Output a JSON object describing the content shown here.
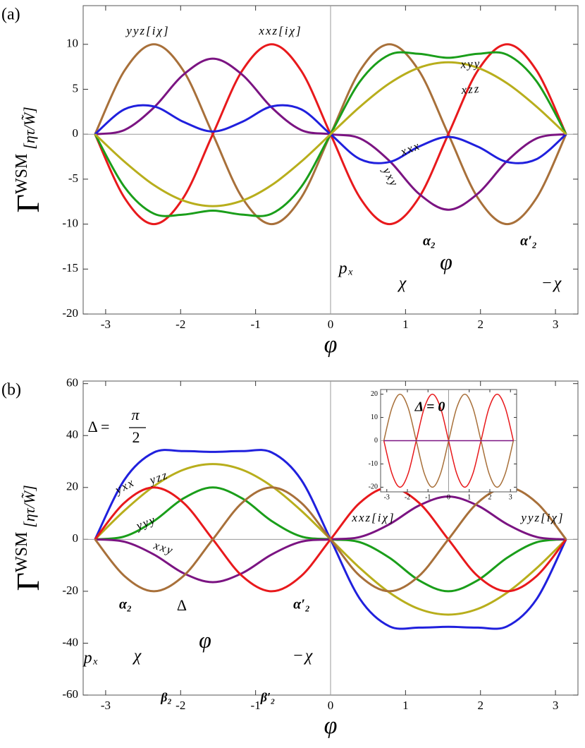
{
  "chart_data": [
    {
      "type": "line",
      "panel_label": "(a)",
      "xlabel": "φ",
      "ylabel": "Γ",
      "ylabel_sup": "WSM",
      "ylabel_unit": "[ητ/W̃]",
      "x": [
        -3.1416,
        -2.7489,
        -2.3562,
        -1.9635,
        -1.5708,
        -1.1781,
        -0.7854,
        -0.3927,
        0,
        0.3927,
        0.7854,
        1.1781,
        1.5708,
        1.9635,
        2.3562,
        2.7489,
        3.1416
      ],
      "series": [
        {
          "color": "#a8703a",
          "values": [
            0,
            7.07,
            10,
            7.07,
            0,
            -7.07,
            -10,
            -7.07,
            0,
            7.07,
            10,
            7.07,
            0,
            -7.07,
            -10,
            -7.07,
            0
          ]
        },
        {
          "color": "#e8191c",
          "values": [
            0,
            -7.07,
            -10,
            -7.07,
            0,
            7.07,
            10,
            7.07,
            0,
            -7.07,
            -10,
            -7.07,
            0,
            7.07,
            10,
            7.07,
            0
          ]
        },
        {
          "color": "#7b1482",
          "values": [
            0,
            0.47,
            2.97,
            6.62,
            8.4,
            6.62,
            2.97,
            0.47,
            0,
            -0.47,
            -2.97,
            -6.62,
            -8.4,
            -6.62,
            -2.97,
            -0.47,
            0
          ]
        },
        {
          "color": "#2020dd",
          "values": [
            0,
            2.77,
            3.09,
            1.38,
            0.3,
            1.38,
            3.09,
            2.77,
            0,
            -2.77,
            -3.09,
            -1.38,
            -0.3,
            -1.38,
            -3.09,
            -2.77,
            0
          ]
        },
        {
          "color": "#1a9e1a",
          "values": [
            0,
            -5.87,
            -8.84,
            -8.94,
            -8.5,
            -8.94,
            -8.84,
            -5.87,
            0,
            5.87,
            8.84,
            8.94,
            8.5,
            8.94,
            8.84,
            5.87,
            0
          ]
        },
        {
          "color": "#b8ae1c",
          "values": [
            0,
            -3.06,
            -5.66,
            -7.39,
            -8,
            -7.39,
            -5.66,
            -3.06,
            0,
            3.06,
            5.66,
            7.39,
            8,
            7.39,
            5.66,
            3.06,
            0
          ]
        }
      ],
      "xlim": [
        -3.3,
        3.3
      ],
      "ylim": [
        -20,
        14.3
      ],
      "xticks": [
        -3,
        -2,
        -1,
        0,
        1,
        2,
        3
      ],
      "yticks": [
        -20,
        -15,
        -10,
        -5,
        0,
        5,
        10
      ],
      "zero_lines": true,
      "annotations": [
        "yyz[iχ]",
        "xxz[iχ]",
        "xyy",
        "xzz",
        "xxx",
        "yxy",
        "pₓ",
        "χ",
        "−χ",
        "α₂",
        "α′₂",
        "φ"
      ]
    },
    {
      "type": "line",
      "panel_label": "(b)",
      "xlabel": "φ",
      "ylabel": "Γ",
      "ylabel_sup": "WSM",
      "ylabel_unit": "[ητ/W̃]",
      "x": [
        -3.1416,
        -2.7489,
        -2.3562,
        -1.9635,
        -1.5708,
        -1.1781,
        -0.7854,
        -0.3927,
        0,
        0.3927,
        0.7854,
        1.1781,
        1.5708,
        1.9635,
        2.3562,
        2.7489,
        3.1416
      ],
      "series": [
        {
          "color": "#2020dd",
          "values": [
            0,
            23,
            33.5,
            34,
            33.7,
            34,
            33.5,
            23,
            0,
            -23,
            -33.5,
            -34,
            -33.7,
            -34,
            -33.5,
            -23,
            0
          ]
        },
        {
          "color": "#b8ae1c",
          "values": [
            0,
            11.1,
            20.5,
            26.8,
            29,
            26.8,
            20.5,
            11.1,
            0,
            -11.1,
            -20.5,
            -26.8,
            -29,
            -26.8,
            -20.5,
            -11.1,
            0
          ]
        },
        {
          "color": "#1a9e1a",
          "values": [
            0,
            1.12,
            7.07,
            15.77,
            20,
            15.77,
            7.07,
            1.12,
            0,
            -1.12,
            -7.07,
            -15.77,
            -20,
            -15.77,
            -7.07,
            -1.12,
            0
          ]
        },
        {
          "color": "#7b1482",
          "values": [
            0,
            -0.92,
            -5.83,
            -13.01,
            -16.5,
            -13.01,
            -5.83,
            -0.92,
            0,
            0.92,
            5.83,
            13.01,
            16.5,
            13.01,
            5.83,
            0.92,
            0
          ]
        },
        {
          "color": "#e8191c",
          "values": [
            0,
            14.14,
            20,
            14.14,
            0,
            -14.14,
            -20,
            -14.14,
            0,
            14.14,
            20,
            14.14,
            0,
            -14.14,
            -20,
            -14.14,
            0
          ]
        },
        {
          "color": "#a8703a",
          "values": [
            0,
            -14.14,
            -20,
            -14.14,
            0,
            14.14,
            20,
            14.14,
            0,
            -14.14,
            -20,
            -14.14,
            0,
            14.14,
            20,
            14.14,
            0
          ]
        }
      ],
      "xlim": [
        -3.3,
        3.3
      ],
      "ylim": [
        -60,
        61
      ],
      "xticks": [
        -3,
        -2,
        -1,
        0,
        1,
        2,
        3
      ],
      "yticks": [
        -60,
        -40,
        -20,
        0,
        20,
        40,
        60
      ],
      "zero_lines": true,
      "annotations": [
        "yxx",
        "yzz",
        "yyy",
        "xxy",
        "xxz[iχ]",
        "yyz[iχ]",
        "Δ =",
        "π",
        "2",
        "pₓ",
        "χ",
        "−χ",
        "α₂",
        "α′₂",
        "Δ",
        "φ",
        "β₂",
        "β′₂"
      ]
    },
    {
      "type": "line",
      "inset": true,
      "x": [
        -3.1416,
        -2.7489,
        -2.3562,
        -1.9635,
        -1.5708,
        -1.1781,
        -0.7854,
        -0.3927,
        0,
        0.3927,
        0.7854,
        1.1781,
        1.5708,
        1.9635,
        2.3562,
        2.7489,
        3.1416
      ],
      "series": [
        {
          "color": "#e8191c",
          "values": [
            0,
            -14.14,
            -20,
            -14.14,
            0,
            14.14,
            20,
            14.14,
            0,
            -14.14,
            -20,
            -14.14,
            0,
            14.14,
            20,
            14.14,
            0
          ]
        },
        {
          "color": "#a8703a",
          "values": [
            0,
            14.14,
            20,
            14.14,
            0,
            -14.14,
            -20,
            -14.14,
            0,
            14.14,
            20,
            14.14,
            0,
            -14.14,
            -20,
            -14.14,
            0
          ]
        },
        {
          "color": "#7b1482",
          "values": [
            0,
            0,
            0,
            0,
            0,
            0,
            0,
            0,
            0,
            0,
            0,
            0,
            0,
            0,
            0,
            0,
            0
          ]
        }
      ],
      "xlim": [
        -3.3,
        3.3
      ],
      "ylim": [
        -22,
        22
      ],
      "xticks": [
        -3,
        -2,
        -1,
        0,
        1,
        2,
        3
      ],
      "yticks": [
        -20,
        -10,
        0,
        10,
        20
      ],
      "zero_lines": true,
      "annotations": [
        "Δ = 0"
      ]
    }
  ]
}
